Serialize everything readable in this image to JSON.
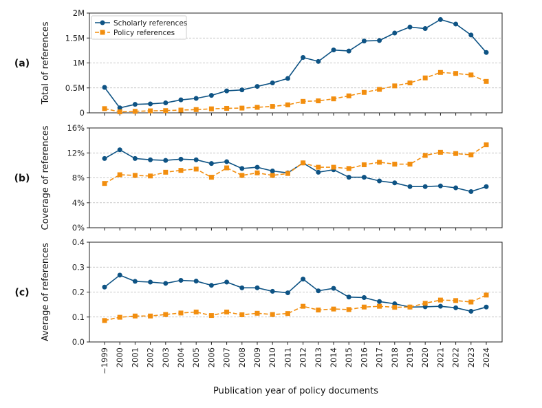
{
  "chart_data": {
    "type": "line",
    "xlabel": "Publication year of policy documents",
    "categories": [
      "~1999",
      "2000",
      "2001",
      "2002",
      "2003",
      "2004",
      "2005",
      "2006",
      "2007",
      "2008",
      "2009",
      "2010",
      "2011",
      "2012",
      "2013",
      "2014",
      "2015",
      "2016",
      "2017",
      "2018",
      "2019",
      "2020",
      "2021",
      "2022",
      "2023",
      "2024"
    ],
    "legend": {
      "placement": "top-left",
      "entries": [
        "Scholarly references",
        "Policy references"
      ]
    },
    "colors": {
      "scholarly": "#0e5384",
      "policy": "#f28e0f",
      "grid": "#b5b5b5"
    },
    "panels": [
      {
        "tag": "(a)",
        "ylabel": "Total of references",
        "ylim": [
          0,
          2000000
        ],
        "yticks": [
          0,
          500000,
          1000000,
          1500000,
          2000000
        ],
        "ytick_labels": [
          "0",
          "0.5M",
          "1M",
          "1.5M",
          "2M"
        ],
        "series": [
          {
            "name": "Scholarly references",
            "values": [
              510000,
              100000,
              170000,
              180000,
              200000,
              260000,
              290000,
              350000,
              440000,
              460000,
              530000,
              600000,
              690000,
              1110000,
              1030000,
              1260000,
              1240000,
              1440000,
              1450000,
              1600000,
              1720000,
              1690000,
              1870000,
              1780000,
              1560000,
              1210000
            ]
          },
          {
            "name": "Policy references",
            "values": [
              85000,
              20000,
              30000,
              40000,
              45000,
              55000,
              65000,
              80000,
              90000,
              95000,
              110000,
              130000,
              160000,
              230000,
              240000,
              280000,
              340000,
              410000,
              470000,
              540000,
              600000,
              700000,
              810000,
              790000,
              760000,
              630000
            ]
          }
        ]
      },
      {
        "tag": "(b)",
        "ylabel": "Coverage of references",
        "ylim": [
          0,
          16
        ],
        "yticks": [
          0,
          4,
          8,
          12,
          16
        ],
        "ytick_labels": [
          "0%",
          "4%",
          "8%",
          "12%",
          "16%"
        ],
        "series": [
          {
            "name": "Scholarly references",
            "values": [
              11.1,
              12.5,
              11.1,
              10.9,
              10.8,
              11.0,
              10.9,
              10.3,
              10.6,
              9.5,
              9.7,
              9.1,
              8.8,
              10.4,
              8.9,
              9.3,
              8.1,
              8.1,
              7.5,
              7.2,
              6.6,
              6.6,
              6.7,
              6.4,
              5.8,
              6.6
            ]
          },
          {
            "name": "Policy references",
            "values": [
              7.1,
              8.5,
              8.4,
              8.3,
              8.9,
              9.2,
              9.4,
              8.1,
              9.6,
              8.4,
              8.8,
              8.4,
              8.7,
              10.4,
              9.7,
              9.7,
              9.5,
              10.1,
              10.5,
              10.2,
              10.2,
              11.6,
              12.1,
              11.9,
              11.7,
              13.3
            ]
          }
        ]
      },
      {
        "tag": "(c)",
        "ylabel": "Average of references",
        "ylim": [
          0,
          0.4
        ],
        "yticks": [
          0,
          0.1,
          0.2,
          0.3,
          0.4
        ],
        "ytick_labels": [
          "0.0",
          "0.1",
          "0.2",
          "0.3",
          "0.4"
        ],
        "series": [
          {
            "name": "Scholarly references",
            "values": [
              0.22,
              0.268,
              0.243,
              0.24,
              0.235,
              0.247,
              0.244,
              0.227,
              0.24,
              0.217,
              0.217,
              0.203,
              0.197,
              0.252,
              0.205,
              0.215,
              0.18,
              0.178,
              0.162,
              0.153,
              0.14,
              0.141,
              0.143,
              0.137,
              0.123,
              0.14
            ]
          },
          {
            "name": "Policy references",
            "values": [
              0.086,
              0.099,
              0.104,
              0.104,
              0.11,
              0.116,
              0.12,
              0.106,
              0.12,
              0.109,
              0.115,
              0.11,
              0.114,
              0.143,
              0.128,
              0.132,
              0.13,
              0.14,
              0.143,
              0.139,
              0.14,
              0.155,
              0.168,
              0.166,
              0.16,
              0.188
            ]
          }
        ]
      }
    ]
  }
}
